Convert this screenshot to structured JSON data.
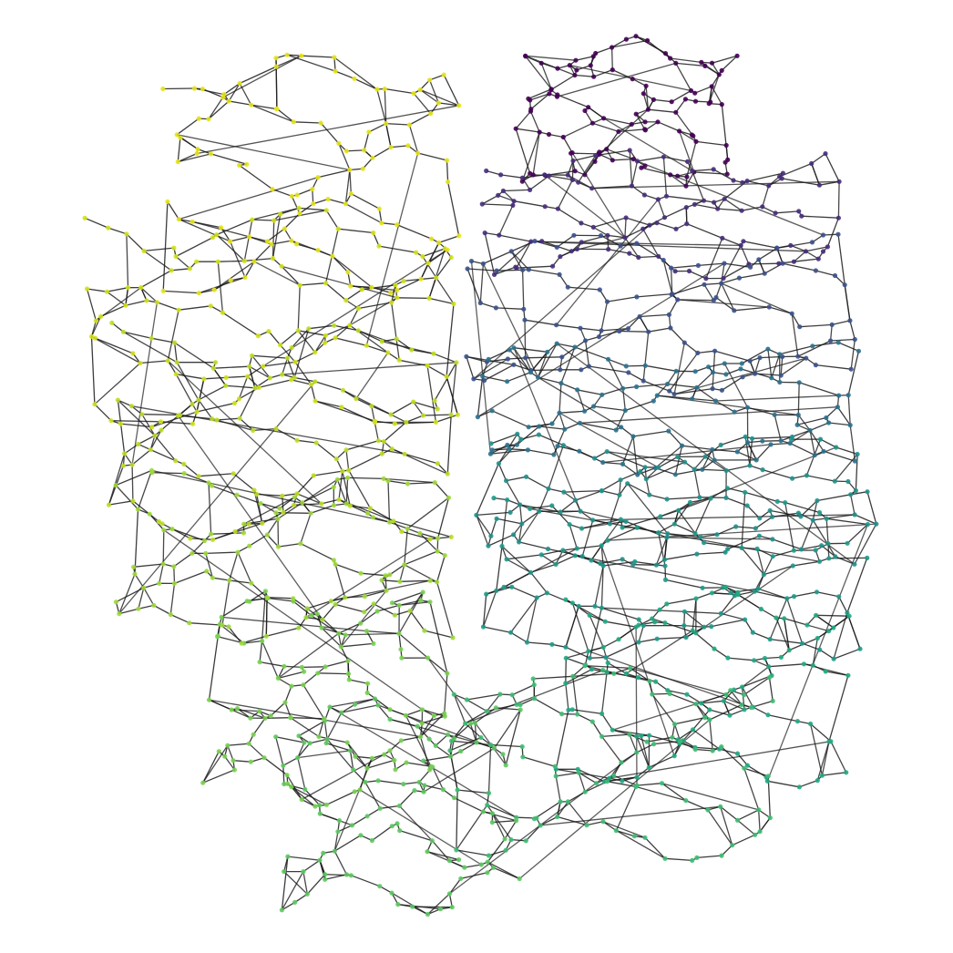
{
  "figure": {
    "background": "#ffffff",
    "edge_color": "#1a1a1a",
    "node_colormap": "viridis",
    "colormap_stops": [
      "#440154",
      "#3b528b",
      "#21908d",
      "#5dc863",
      "#fde725"
    ],
    "bands": [
      {
        "id": "band-01",
        "side": "right",
        "color": "#440154"
      },
      {
        "id": "band-02",
        "side": "right",
        "color": "#472d7b"
      },
      {
        "id": "band-03",
        "side": "right",
        "color": "#3b528b"
      },
      {
        "id": "band-04",
        "side": "right",
        "color": "#2c728e"
      },
      {
        "id": "band-05",
        "side": "right",
        "color": "#21918c"
      },
      {
        "id": "band-06",
        "side": "right",
        "color": "#1f9a8a"
      },
      {
        "id": "band-07",
        "side": "right",
        "color": "#22a884"
      },
      {
        "id": "band-08",
        "side": "bottom",
        "color": "#3fbc73"
      },
      {
        "id": "band-09",
        "side": "bottom",
        "color": "#5ec962"
      },
      {
        "id": "band-10",
        "side": "left",
        "color": "#7ad151"
      },
      {
        "id": "band-11",
        "side": "left",
        "color": "#9fda3a"
      },
      {
        "id": "band-12",
        "side": "left",
        "color": "#bddf26"
      },
      {
        "id": "band-13",
        "side": "left",
        "color": "#d2e21b"
      },
      {
        "id": "band-14",
        "side": "left",
        "color": "#e5e419"
      }
    ]
  }
}
